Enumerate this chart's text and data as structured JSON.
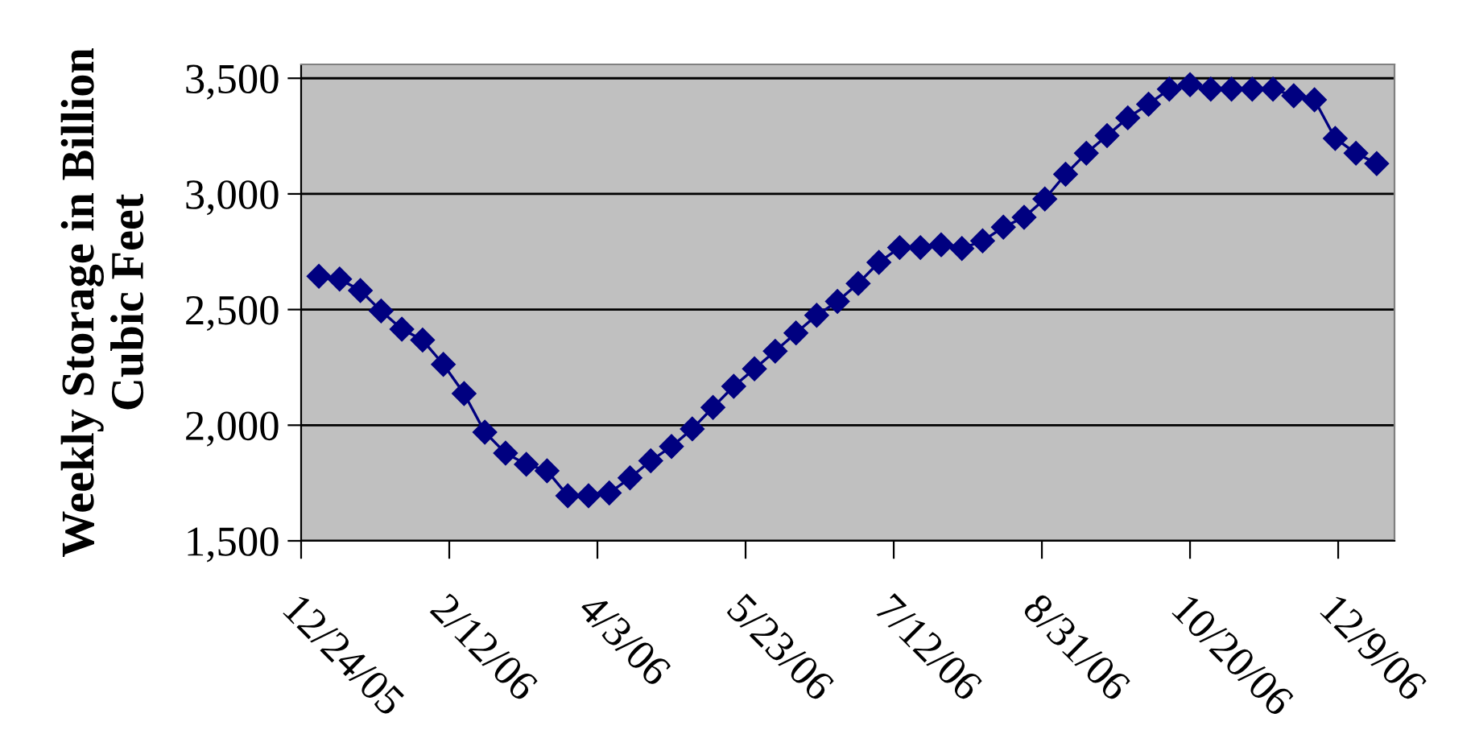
{
  "chart_data": {
    "type": "line",
    "ylabel": "Weekly Storage in Billion\nCubic Feet",
    "x": [
      "2005-12-30",
      "2006-01-06",
      "2006-01-13",
      "2006-01-20",
      "2006-01-27",
      "2006-02-03",
      "2006-02-10",
      "2006-02-17",
      "2006-02-24",
      "2006-03-03",
      "2006-03-10",
      "2006-03-17",
      "2006-03-24",
      "2006-03-31",
      "2006-04-07",
      "2006-04-14",
      "2006-04-21",
      "2006-04-28",
      "2006-05-05",
      "2006-05-12",
      "2006-05-19",
      "2006-05-26",
      "2006-06-02",
      "2006-06-09",
      "2006-06-16",
      "2006-06-23",
      "2006-06-30",
      "2006-07-07",
      "2006-07-14",
      "2006-07-21",
      "2006-07-28",
      "2006-08-04",
      "2006-08-11",
      "2006-08-18",
      "2006-08-25",
      "2006-09-01",
      "2006-09-08",
      "2006-09-15",
      "2006-09-22",
      "2006-09-29",
      "2006-10-06",
      "2006-10-13",
      "2006-10-20",
      "2006-10-27",
      "2006-11-03",
      "2006-11-10",
      "2006-11-17",
      "2006-11-24",
      "2006-12-01",
      "2006-12-08",
      "2006-12-15",
      "2006-12-22"
    ],
    "series": [
      {
        "color": "#000080",
        "values": [
          2644,
          2632,
          2582,
          2494,
          2415,
          2368,
          2263,
          2137,
          1970,
          1879,
          1831,
          1803,
          1695,
          1695,
          1707,
          1772,
          1846,
          1908,
          1984,
          2077,
          2168,
          2244,
          2320,
          2399,
          2475,
          2535,
          2613,
          2704,
          2768,
          2768,
          2780,
          2764,
          2797,
          2856,
          2899,
          2978,
          3085,
          3176,
          3252,
          3329,
          3388,
          3453,
          3472,
          3453,
          3453,
          3453,
          3453,
          3424,
          3407,
          3240,
          3176,
          3131
        ]
      }
    ],
    "xlim": [
      "2005-12-24",
      "2006-12-28"
    ],
    "xticks": [
      {
        "value": "2005-12-24",
        "label": "12/24/05"
      },
      {
        "value": "2006-02-12",
        "label": "2/12/06"
      },
      {
        "value": "2006-04-03",
        "label": "4/3/06"
      },
      {
        "value": "2006-05-23",
        "label": "5/23/06"
      },
      {
        "value": "2006-07-12",
        "label": "7/12/06"
      },
      {
        "value": "2006-08-31",
        "label": "8/31/06"
      },
      {
        "value": "2006-10-20",
        "label": "10/20/06"
      },
      {
        "value": "2006-12-09",
        "label": "12/9/06"
      }
    ],
    "ylim": [
      1500,
      3560
    ],
    "yticks": [
      {
        "value": 1500,
        "label": "1,500"
      },
      {
        "value": 2000,
        "label": "2,000"
      },
      {
        "value": 2500,
        "label": "2,500"
      },
      {
        "value": 3000,
        "label": "3,000"
      },
      {
        "value": 3500,
        "label": "3,500"
      }
    ],
    "grid": "y",
    "legend": false,
    "marker": "diamond",
    "line_style": "solid"
  }
}
